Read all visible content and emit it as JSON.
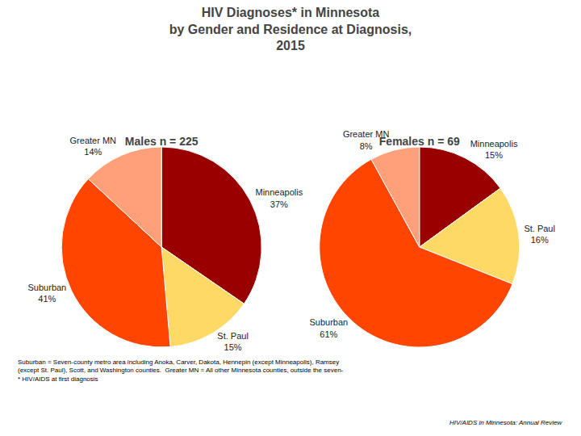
{
  "title": "HIV Diagnoses* in Minnesota\nby Gender and Residence at Diagnosis,\n2015",
  "annotations": [
    "Suburban = Seven-county metro area including Anoka, Carver, Dakota, Hennepin (except Minneapolis), Ramsey\n(except St. Paul), Scott, and Washington counties.  Greater MN = All other Minnesota counties, outside the seven-\n* HIV/AIDS at first diagnosis",
    "HIV/AIDS in Minnesota: Annual Review"
  ],
  "chart_data": [
    {
      "type": "pie",
      "title": "Males n = 225",
      "categories": [
        "Minneapolis",
        "St. Paul",
        "Suburban",
        "Greater MN"
      ],
      "values": [
        37,
        15,
        41,
        14
      ],
      "value_labels": [
        "37%",
        "15%",
        "41%",
        "14%"
      ],
      "colors": [
        "#990000",
        "#FFD966",
        "#FF4500",
        "#FFA07A"
      ],
      "data_labels": true
    },
    {
      "type": "pie",
      "title": "Females n = 69",
      "categories": [
        "Minneapolis",
        "St. Paul",
        "Suburban",
        "Greater MN"
      ],
      "values": [
        15,
        16,
        61,
        8
      ],
      "value_labels": [
        "15%",
        "16%",
        "61%",
        "8%"
      ],
      "colors": [
        "#990000",
        "#FFD966",
        "#FF4500",
        "#FFA07A"
      ],
      "data_labels": true
    }
  ]
}
